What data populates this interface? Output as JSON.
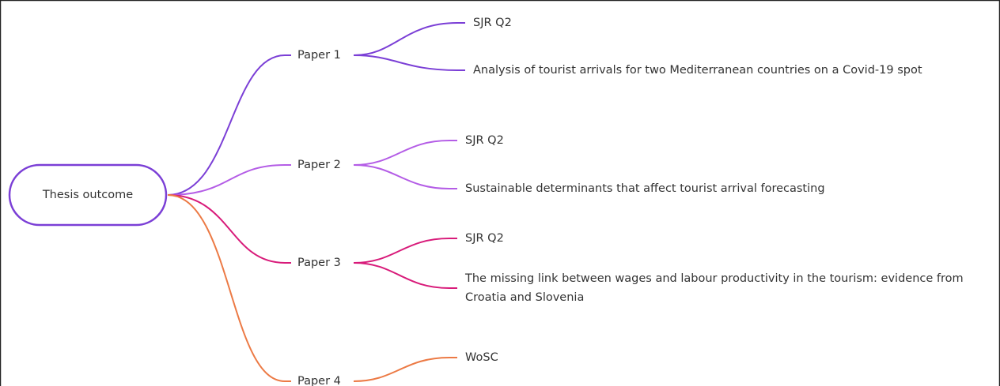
{
  "root": {
    "label": "Thesis outcome"
  },
  "branches": [
    {
      "label": "Paper 1",
      "color": "#7b3fd6",
      "children": [
        "SJR Q2",
        "Analysis of tourist arrivals for two Mediterranean countries on a Covid-19 spot"
      ]
    },
    {
      "label": "Paper 2",
      "color": "#b45de6",
      "children": [
        "SJR Q2",
        "Sustainable determinants that affect tourist arrival forecasting"
      ]
    },
    {
      "label": "Paper 3",
      "color": "#d81b7a",
      "children": [
        "SJR Q2",
        "The missing link between wages and labour productivity in the tourism: evidence from Croatia and Slovenia"
      ]
    },
    {
      "label": "Paper 4",
      "color": "#ec7a45",
      "children": [
        "WoSC"
      ]
    }
  ]
}
